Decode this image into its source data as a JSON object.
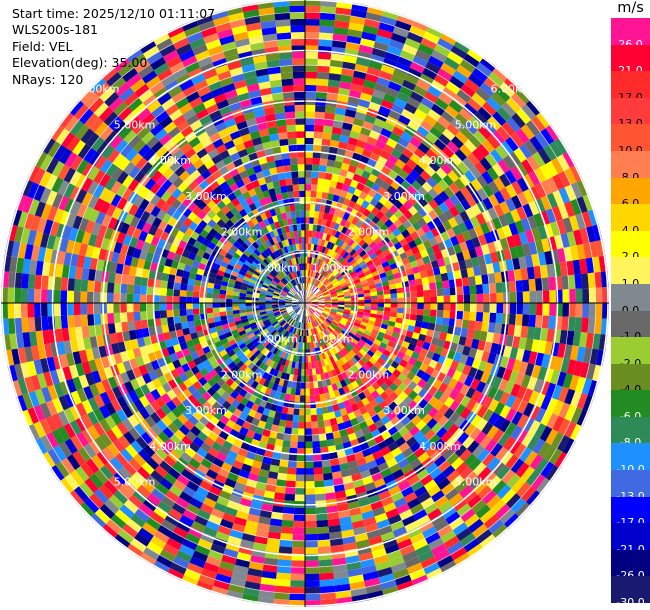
{
  "info": {
    "start_time": "Start time: 2025/12/10 01:11:07",
    "instrument": "WLS200s-181",
    "field": "Field: VEL",
    "elevation": "Elevation(deg): 35.00",
    "nrays": "NRays: 120"
  },
  "colorbar": {
    "unit": "m/s",
    "segments": [
      {
        "label": "26.0",
        "color": "#ff1493"
      },
      {
        "label": "21.0",
        "color": "#ff0033"
      },
      {
        "label": "17.0",
        "color": "#ff2a2a"
      },
      {
        "label": "13.0",
        "color": "#ff3b3b"
      },
      {
        "label": "10.0",
        "color": "#ff5533"
      },
      {
        "label": "8.0",
        "color": "#ff7f50"
      },
      {
        "label": "6.0",
        "color": "#ffa500"
      },
      {
        "label": "4.0",
        "color": "#ffd700"
      },
      {
        "label": "2.0",
        "color": "#ffff00"
      },
      {
        "label": "1.0",
        "color": "#fff45c"
      },
      {
        "label": "0.0",
        "color": "#808890"
      },
      {
        "label": "-1.0",
        "color": "#696969"
      },
      {
        "label": "-2.0",
        "color": "#9acd32"
      },
      {
        "label": "-4.0",
        "color": "#6b8e23"
      },
      {
        "label": "-6.0",
        "color": "#228b22"
      },
      {
        "label": "-8.0",
        "color": "#2e8b57"
      },
      {
        "label": "-10.0",
        "color": "#1e90ff"
      },
      {
        "label": "-13.0",
        "color": "#4169e1"
      },
      {
        "label": "-17.0",
        "color": "#0000ff"
      },
      {
        "label": "-21.0",
        "color": "#0000cd"
      },
      {
        "label": "-26.0",
        "color": "#000080"
      },
      {
        "label": "-30.0",
        "color": "#191970"
      }
    ]
  },
  "range_rings": {
    "labels_upper_left": [
      "6.00km",
      "5.00km",
      "4.00km",
      "3.00km",
      "2.00km",
      "1.00km"
    ],
    "labels_upper_right": [
      "6.00km",
      "5.00km",
      "4.00km",
      "3.00km",
      "2.00km",
      "1.00km"
    ],
    "labels_lower_left": [
      "1.00km",
      "2.00km",
      "3.00km",
      "4.00km",
      "5.00km"
    ],
    "labels_lower_right": [
      "1.00km",
      "2.00km",
      "3.00km",
      "4.00km",
      "5.00km"
    ]
  },
  "scan": {
    "nrays": 120,
    "field": "VEL",
    "units": "m/s"
  }
}
